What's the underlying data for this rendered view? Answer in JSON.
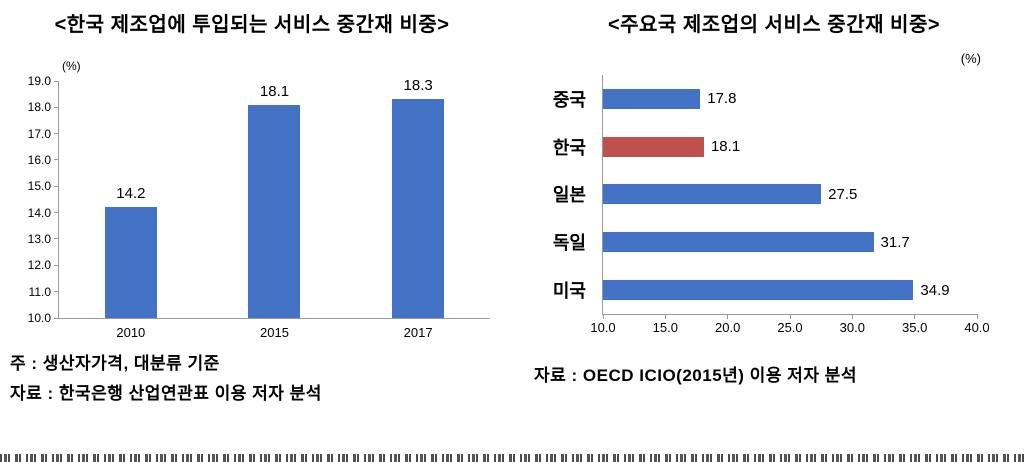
{
  "left_chart": {
    "title": "<한국 제조업에 투입되는 서비스 중간재 비중>",
    "unit_label": "(%)",
    "notes": [
      "주 : 생산자가격, 대분류 기준",
      "자료 : 한국은행 산업연관표 이용 저자 분석"
    ]
  },
  "right_chart": {
    "title": "<주요국 제조업의 서비스 중간재 비중>",
    "unit_label": "(%)",
    "notes": [
      "자료 : OECD ICIO(2015년) 이용 저자 분석"
    ]
  },
  "colors": {
    "bar_blue": "#4472c4",
    "bar_red": "#c0504d",
    "axis_gray": "#9a9a9a"
  },
  "chart_data": [
    {
      "type": "bar",
      "title": "<한국 제조업에 투입되는 서비스 중간재 비중>",
      "categories": [
        "2010",
        "2015",
        "2017"
      ],
      "values": [
        14.2,
        18.1,
        18.3
      ],
      "value_labels": [
        "14.2",
        "18.1",
        "18.3"
      ],
      "ylabel": "(%)",
      "ylim": [
        10.0,
        19.0
      ],
      "ytick_step": 1.0,
      "yticks": [
        10.0,
        11.0,
        12.0,
        13.0,
        14.0,
        15.0,
        16.0,
        17.0,
        18.0,
        19.0
      ],
      "grid": false,
      "legend": false,
      "bar_color": "#4472c4"
    },
    {
      "type": "bar-horizontal",
      "title": "<주요국 제조업의 서비스 중간재 비중>",
      "categories": [
        "중국",
        "한국",
        "일본",
        "독일",
        "미국"
      ],
      "values": [
        17.8,
        18.1,
        27.5,
        31.7,
        34.9
      ],
      "value_labels": [
        "17.8",
        "18.1",
        "27.5",
        "31.7",
        "34.9"
      ],
      "xlabel": "(%)",
      "xlim": [
        10.0,
        40.0
      ],
      "xticks": [
        10.0,
        15.0,
        20.0,
        25.0,
        30.0,
        35.0,
        40.0
      ],
      "grid": false,
      "legend": false,
      "bar_colors": [
        "#4472c4",
        "#c0504d",
        "#4472c4",
        "#4472c4",
        "#4472c4"
      ]
    }
  ]
}
